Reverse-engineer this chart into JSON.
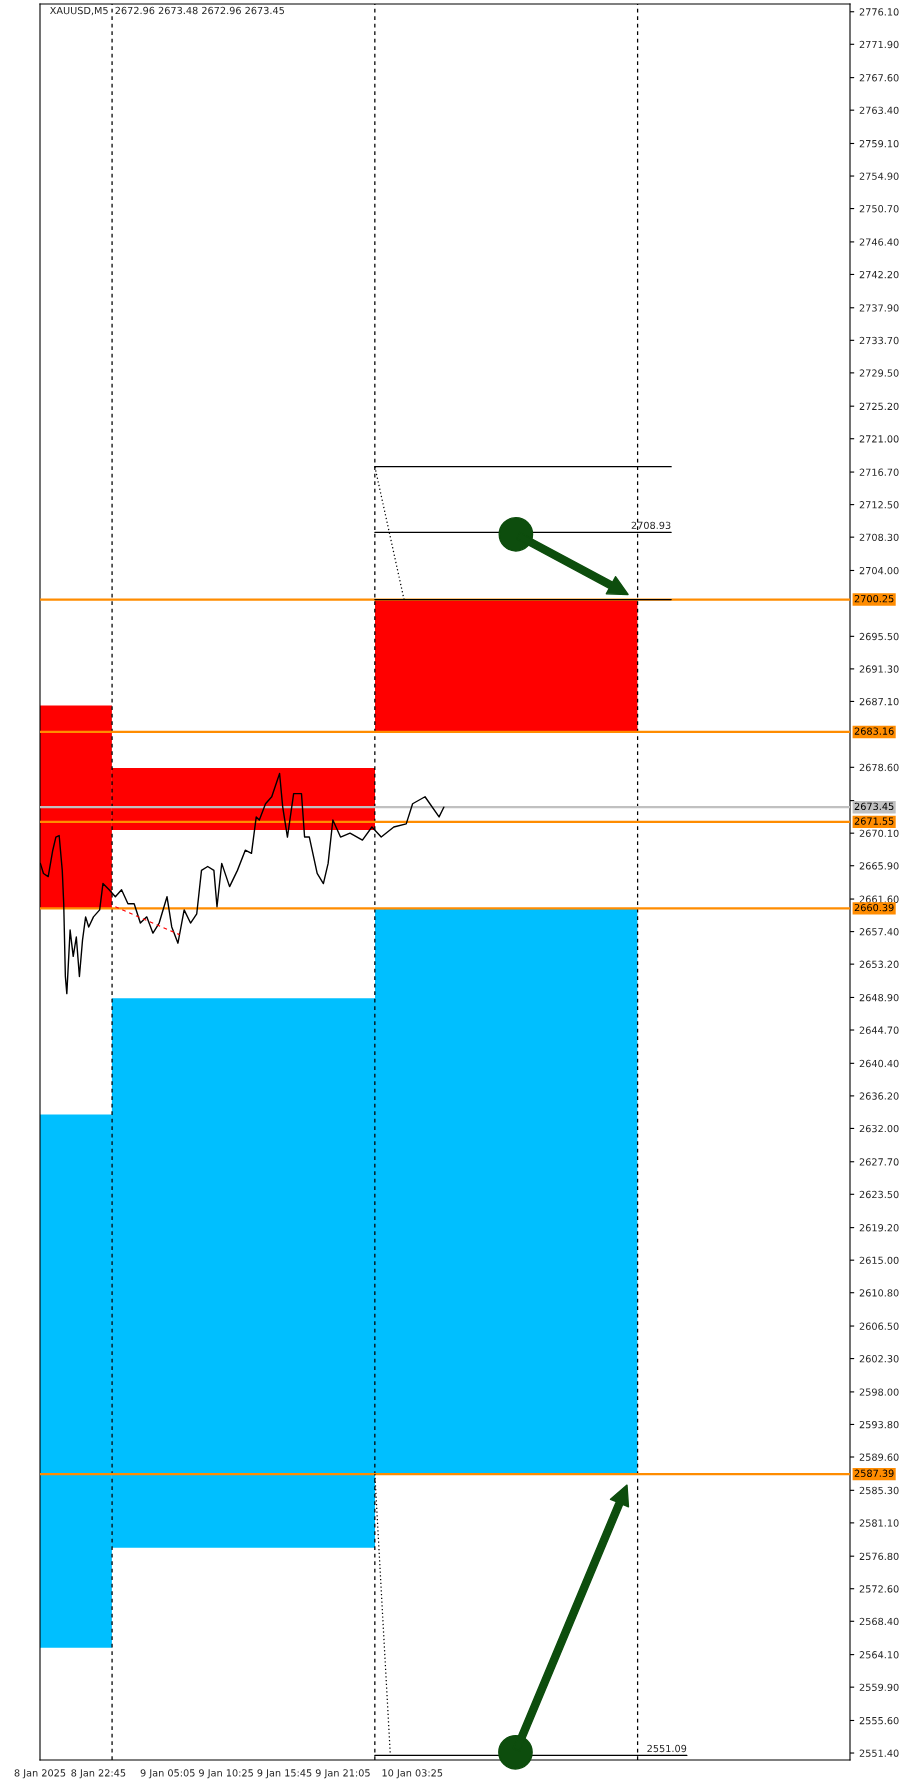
{
  "chart_data": {
    "type": "line",
    "title": "XAUUSD,M5  2672.96 2673.48 2672.96 2673.45",
    "xlim": [
      "2025-01-08T17:25",
      "2025-01-11T19:24"
    ],
    "ylim": [
      2550.5,
      2777.1
    ],
    "xticks": [
      {
        "value": "2025-01-08T17:25",
        "label": "8 Jan 2025"
      },
      {
        "value": "2025-01-08T22:45",
        "label": "8 Jan 22:45"
      },
      {
        "value": "2025-01-09T05:05",
        "label": "9 Jan 05:05"
      },
      {
        "value": "2025-01-09T10:25",
        "label": "9 Jan 10:25"
      },
      {
        "value": "2025-01-09T15:45",
        "label": "9 Jan 15:45"
      },
      {
        "value": "2025-01-09T21:05",
        "label": "9 Jan 21:05"
      },
      {
        "value": "2025-01-10T03:25",
        "label": "10 Jan 03:25"
      }
    ],
    "yticks": [
      {
        "value": 2776.1,
        "label": "2776.10"
      },
      {
        "value": 2771.9,
        "label": "2771.90"
      },
      {
        "value": 2767.6,
        "label": "2767.60"
      },
      {
        "value": 2763.4,
        "label": "2763.40"
      },
      {
        "value": 2759.1,
        "label": "2759.10"
      },
      {
        "value": 2754.9,
        "label": "2754.90"
      },
      {
        "value": 2750.7,
        "label": "2750.70"
      },
      {
        "value": 2746.4,
        "label": "2746.40"
      },
      {
        "value": 2742.2,
        "label": "2742.20"
      },
      {
        "value": 2737.9,
        "label": "2737.90"
      },
      {
        "value": 2733.7,
        "label": "2733.70"
      },
      {
        "value": 2729.5,
        "label": "2729.50"
      },
      {
        "value": 2725.2,
        "label": "2725.20"
      },
      {
        "value": 2721.0,
        "label": "2721.00"
      },
      {
        "value": 2716.7,
        "label": "2716.70"
      },
      {
        "value": 2712.5,
        "label": "2712.50"
      },
      {
        "value": 2708.3,
        "label": "2708.30"
      },
      {
        "value": 2704.0,
        "label": "2704.00"
      },
      {
        "value": 2695.5,
        "label": "2695.50"
      },
      {
        "value": 2691.3,
        "label": "2691.30"
      },
      {
        "value": 2687.1,
        "label": "2687.10"
      },
      {
        "value": 2678.6,
        "label": "2678.60"
      },
      {
        "value": 2674.3,
        "label": null
      },
      {
        "value": 2670.1,
        "label": "2670.10"
      },
      {
        "value": 2665.9,
        "label": "2665.90"
      },
      {
        "value": 2661.6,
        "label": "2661.60"
      },
      {
        "value": 2657.4,
        "label": "2657.40"
      },
      {
        "value": 2653.2,
        "label": "2653.20"
      },
      {
        "value": 2648.9,
        "label": "2648.90"
      },
      {
        "value": 2644.7,
        "label": "2644.70"
      },
      {
        "value": 2640.4,
        "label": "2640.40"
      },
      {
        "value": 2636.2,
        "label": "2636.20"
      },
      {
        "value": 2632.0,
        "label": "2632.00"
      },
      {
        "value": 2627.7,
        "label": "2627.70"
      },
      {
        "value": 2623.5,
        "label": "2623.50"
      },
      {
        "value": 2619.2,
        "label": "2619.20"
      },
      {
        "value": 2615.0,
        "label": "2615.00"
      },
      {
        "value": 2610.8,
        "label": "2610.80"
      },
      {
        "value": 2606.5,
        "label": "2606.50"
      },
      {
        "value": 2602.3,
        "label": "2602.30"
      },
      {
        "value": 2598.0,
        "label": "2598.00"
      },
      {
        "value": 2593.8,
        "label": "2593.80"
      },
      {
        "value": 2589.6,
        "label": "2589.60"
      },
      {
        "value": 2585.3,
        "label": "2585.30"
      },
      {
        "value": 2581.1,
        "label": "2581.10"
      },
      {
        "value": 2576.8,
        "label": "2576.80"
      },
      {
        "value": 2572.6,
        "label": "2572.60"
      },
      {
        "value": 2568.4,
        "label": "2568.40"
      },
      {
        "value": 2564.1,
        "label": "2564.10"
      },
      {
        "value": 2559.9,
        "label": "2559.90"
      },
      {
        "value": 2555.6,
        "label": "2555.60"
      },
      {
        "value": 2551.4,
        "label": "2551.40"
      }
    ],
    "series": [
      {
        "type": "bar",
        "color": "#ff0000",
        "x": [
          "2025-01-08T20:42",
          "2025-01-09T12:00",
          "2025-01-10T12:00"
        ],
        "base": [
          2660.39,
          2670.5,
          2683.16
        ],
        "values": [
          26.2,
          8.0,
          17.1
        ]
      },
      {
        "type": "bar",
        "color": "#00bfff",
        "x": [
          "2025-01-08T20:42",
          "2025-01-09T12:00",
          "2025-01-10T12:00"
        ],
        "base": [
          2565.0,
          2577.9,
          2587.39
        ],
        "values": [
          68.8,
          70.9,
          73.0
        ]
      },
      {
        "color": "#000000",
        "x": [
          "2025-01-08T17:27",
          "2025-01-08T17:44",
          "2025-01-08T18:10",
          "2025-01-08T18:35",
          "2025-01-08T18:52",
          "2025-01-08T19:10",
          "2025-01-08T19:27",
          "2025-01-08T19:35",
          "2025-01-08T19:44",
          "2025-01-08T19:52",
          "2025-01-08T20:10",
          "2025-01-08T20:27",
          "2025-01-08T20:44",
          "2025-01-08T21:01",
          "2025-01-08T21:18",
          "2025-01-08T21:35",
          "2025-01-08T21:52",
          "2025-01-08T22:18",
          "2025-01-08T22:52",
          "2025-01-08T23:10",
          "2025-01-08T23:44",
          "2025-01-09T00:18",
          "2025-01-09T00:52",
          "2025-01-09T01:27",
          "2025-01-09T02:01",
          "2025-01-09T02:35",
          "2025-01-09T03:10",
          "2025-01-09T03:44",
          "2025-01-09T04:18",
          "2025-01-09T05:01",
          "2025-01-09T05:27",
          "2025-01-09T06:01",
          "2025-01-09T06:35",
          "2025-01-09T07:10",
          "2025-01-09T07:44",
          "2025-01-09T08:10",
          "2025-01-09T08:44",
          "2025-01-09T09:18",
          "2025-01-09T09:35",
          "2025-01-09T10:01",
          "2025-01-09T10:44",
          "2025-01-09T11:27",
          "2025-01-09T12:10",
          "2025-01-09T12:44",
          "2025-01-09T13:10",
          "2025-01-09T13:27",
          "2025-01-09T14:01",
          "2025-01-09T14:35",
          "2025-01-09T15:18",
          "2025-01-09T15:35",
          "2025-01-09T16:01",
          "2025-01-09T16:35",
          "2025-01-09T17:18",
          "2025-01-09T17:35",
          "2025-01-09T18:01",
          "2025-01-09T18:44",
          "2025-01-09T19:18",
          "2025-01-09T19:44",
          "2025-01-09T20:10",
          "2025-01-09T20:52",
          "2025-01-09T21:44",
          "2025-01-09T22:52",
          "2025-01-09T23:44",
          "2025-01-10T00:35",
          "2025-01-10T01:44",
          "2025-01-10T02:52",
          "2025-01-10T03:27",
          "2025-01-10T04:35",
          "2025-01-10T05:52",
          "2025-01-10T06:18"
        ],
        "values": [
          2666.2,
          2664.9,
          2664.5,
          2667.9,
          2669.6,
          2669.8,
          2665.3,
          2661.0,
          2651.6,
          2649.4,
          2657.6,
          2654.2,
          2656.7,
          2651.6,
          2656.3,
          2659.3,
          2658.0,
          2659.3,
          2660.2,
          2663.6,
          2662.8,
          2661.9,
          2662.8,
          2661.0,
          2661.0,
          2658.5,
          2659.3,
          2657.2,
          2658.5,
          2661.9,
          2658.0,
          2655.9,
          2660.2,
          2658.5,
          2659.7,
          2665.3,
          2665.8,
          2665.3,
          2660.6,
          2666.2,
          2663.2,
          2665.3,
          2667.9,
          2667.5,
          2672.2,
          2671.8,
          2673.9,
          2674.8,
          2677.8,
          2673.5,
          2669.6,
          2675.2,
          2675.2,
          2669.6,
          2669.6,
          2664.9,
          2663.6,
          2666.2,
          2671.8,
          2669.6,
          2670.1,
          2669.2,
          2670.9,
          2669.6,
          2670.9,
          2671.3,
          2673.9,
          2674.8,
          2672.2,
          2673.45
        ]
      },
      {
        "type": "line",
        "color": "#ff0000",
        "line_style": "dashed",
        "x": [
          "2025-01-09T00:18",
          "2025-01-09T06:10"
        ],
        "values": [
          2660.6,
          2657.0
        ]
      },
      {
        "type": "line",
        "color": "#000000",
        "x": [
          "2025-01-10T00:00",
          "2025-01-11T03:04"
        ],
        "values": [
          2717.4,
          2717.4
        ]
      },
      {
        "type": "line",
        "color": "#000000",
        "x": [
          "2025-01-10T00:00",
          "2025-01-11T03:04"
        ],
        "values": [
          2708.93,
          2708.93
        ]
      },
      {
        "type": "line",
        "color": "#000000",
        "x": [
          "2025-01-10T00:00",
          "2025-01-11T03:04"
        ],
        "values": [
          2700.25,
          2700.25
        ]
      },
      {
        "type": "line",
        "color": "#000000",
        "x": [
          "2025-01-10T00:00",
          "2025-01-11T04:30"
        ],
        "values": [
          2551.09,
          2551.09
        ]
      },
      {
        "type": "line",
        "color": "#000000",
        "line_style": "dotted",
        "x": [
          "2025-01-10T00:00",
          "2025-01-10T02:40"
        ],
        "values": [
          2717.4,
          2700.25
        ]
      },
      {
        "type": "line",
        "color": "#000000",
        "line_style": "dotted",
        "x": [
          "2025-01-10T00:00",
          "2025-01-10T01:25"
        ],
        "values": [
          2587.39,
          2551.09
        ]
      }
    ],
    "ref_lines": [
      {
        "axis": "x",
        "value": "2025-01-09T00:00",
        "color": "#000000",
        "line_style": "dashed"
      },
      {
        "axis": "x",
        "value": "2025-01-10T00:00",
        "color": "#000000",
        "line_style": "dashed"
      },
      {
        "axis": "x",
        "value": "2025-01-11T00:00",
        "color": "#000000",
        "line_style": "dashed"
      },
      {
        "axis": "y",
        "value": 2673.45,
        "label": "2673.45",
        "color": "#c0c0c0"
      },
      {
        "axis": "y",
        "value": 2700.25,
        "label": "2700.25",
        "color": "#ff8c00"
      },
      {
        "axis": "y",
        "value": 2683.16,
        "label": "2683.16",
        "color": "#ff8c00"
      },
      {
        "axis": "y",
        "value": 2671.55,
        "label": "2671.55",
        "color": "#ff8c00"
      },
      {
        "axis": "y",
        "value": 2660.39,
        "label": "2660.39",
        "color": "#ff8c00"
      },
      {
        "axis": "y",
        "value": 2587.39,
        "label": "2587.39",
        "color": "#ff8c00"
      }
    ],
    "annotations": [
      {
        "text": "2708.93",
        "x": "2025-01-11T03:04",
        "y": 2708.93
      },
      {
        "text": "2551.09",
        "x": "2025-01-11T04:30",
        "y": 2551.09
      }
    ]
  }
}
